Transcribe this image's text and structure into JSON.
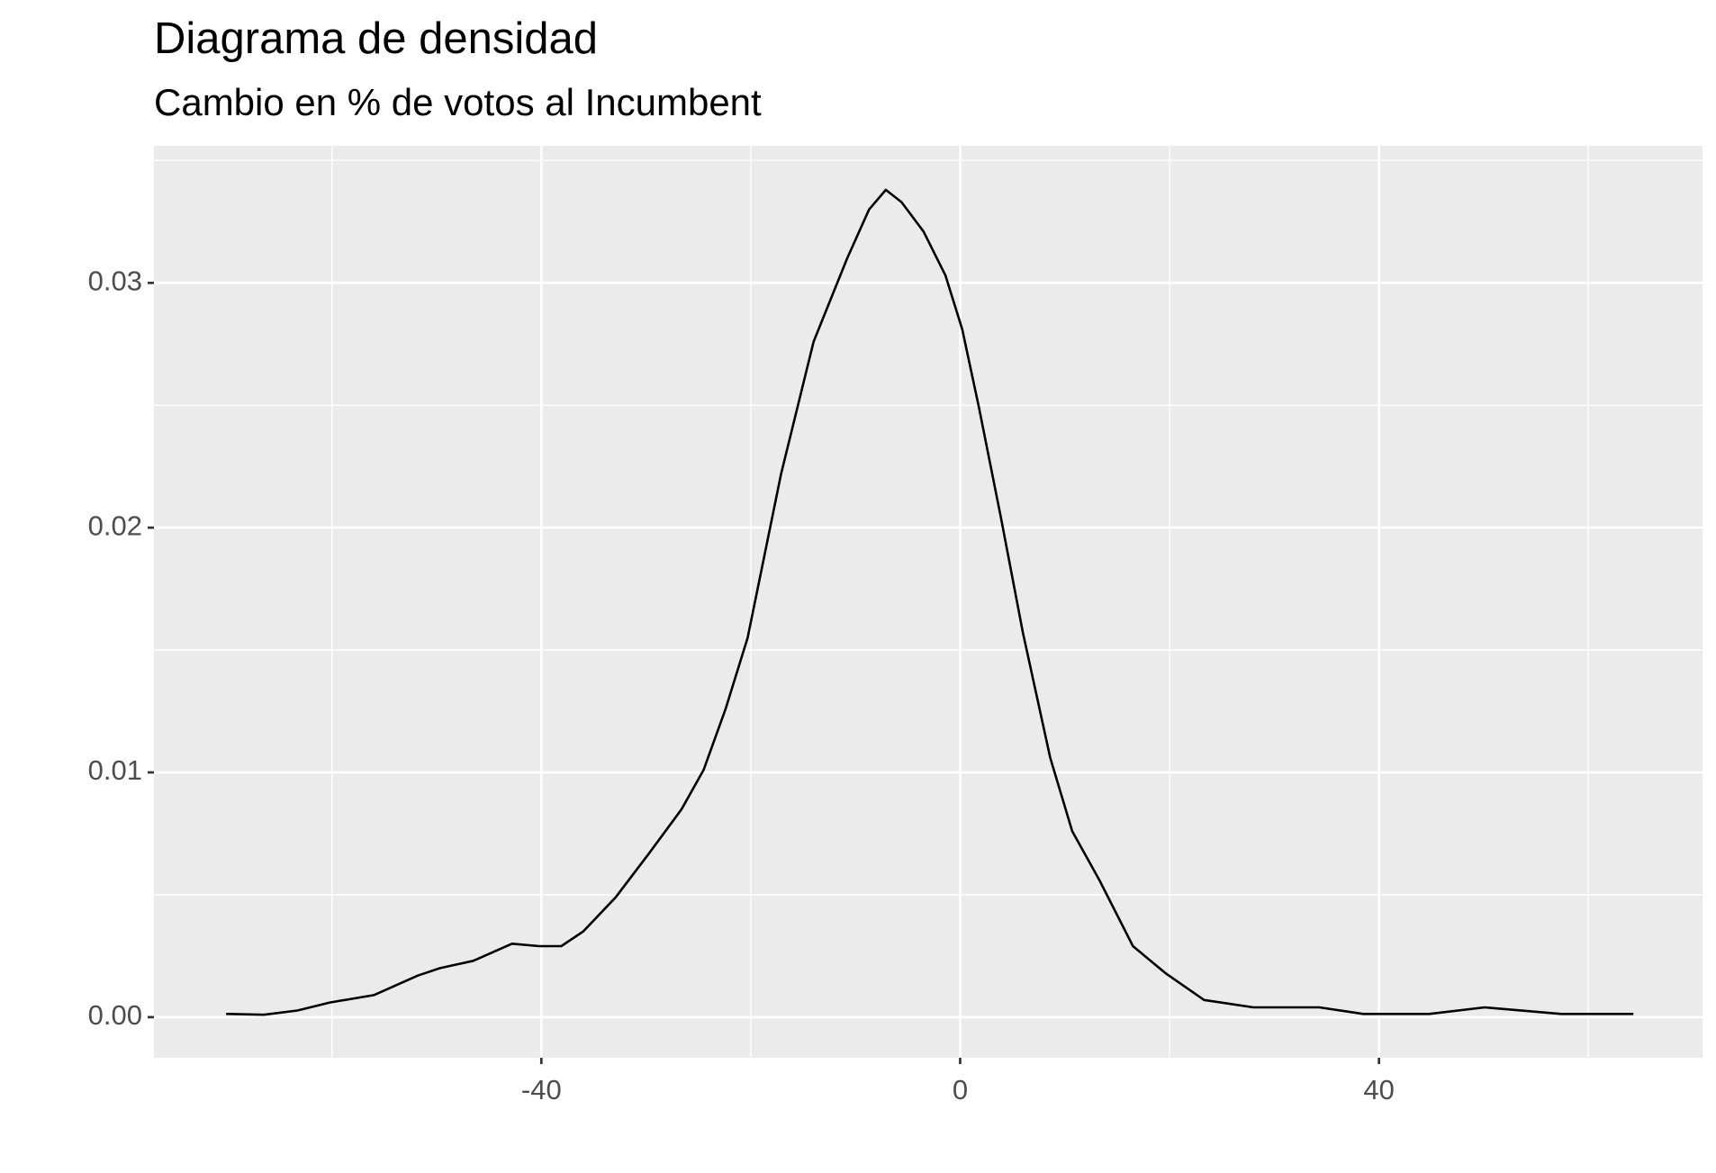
{
  "chart_data": {
    "type": "density",
    "title": "Diagrama de densidad",
    "subtitle": "Cambio en % de votos al Incumbent",
    "x": [
      -70.1,
      -66.5,
      -63.3,
      -60.2,
      -56,
      -51.8,
      -49.7,
      -46.5,
      -42.8,
      -40.2,
      -38.1,
      -36,
      -32.9,
      -29.7,
      -26.6,
      -24.5,
      -22.4,
      -20.3,
      -17.1,
      -14,
      -10.8,
      -8.7,
      -7.1,
      -5.6,
      -3.5,
      -1.4,
      0.2,
      1.8,
      3.9,
      6,
      8.6,
      10.7,
      13.3,
      16.5,
      19.6,
      23.3,
      28,
      34.3,
      38.5,
      44.8,
      50.1,
      57.4,
      64.3
    ],
    "values": [
      0.00013,
      0.0001,
      0.00027,
      0.0006,
      0.0009,
      0.0017,
      0.002,
      0.0023,
      0.003,
      0.0029,
      0.0029,
      0.0035,
      0.0049,
      0.0067,
      0.0085,
      0.0101,
      0.0126,
      0.0155,
      0.0222,
      0.0276,
      0.031,
      0.033,
      0.0338,
      0.0333,
      0.0321,
      0.0303,
      0.0281,
      0.0249,
      0.0204,
      0.0157,
      0.0106,
      0.0076,
      0.0056,
      0.0029,
      0.0018,
      0.0007,
      0.0004,
      0.0004,
      0.00013,
      0.00013,
      0.0004,
      0.00013,
      0.00013
    ],
    "color": "#000000",
    "xlim": [
      -77,
      70.9
    ],
    "ylim": [
      -0.00166,
      0.0356
    ],
    "xticks": [
      -40,
      0,
      40
    ],
    "yticks": [
      {
        "value": 0,
        "label": "0.00"
      },
      {
        "value": 0.01,
        "label": "0.01"
      },
      {
        "value": 0.02,
        "label": "0.02"
      },
      {
        "value": 0.03,
        "label": "0.03"
      }
    ],
    "xminor": [
      -60,
      -20,
      20,
      60
    ],
    "yminor": [
      0.005,
      0.015,
      0.025,
      0.035
    ],
    "grid": true
  }
}
